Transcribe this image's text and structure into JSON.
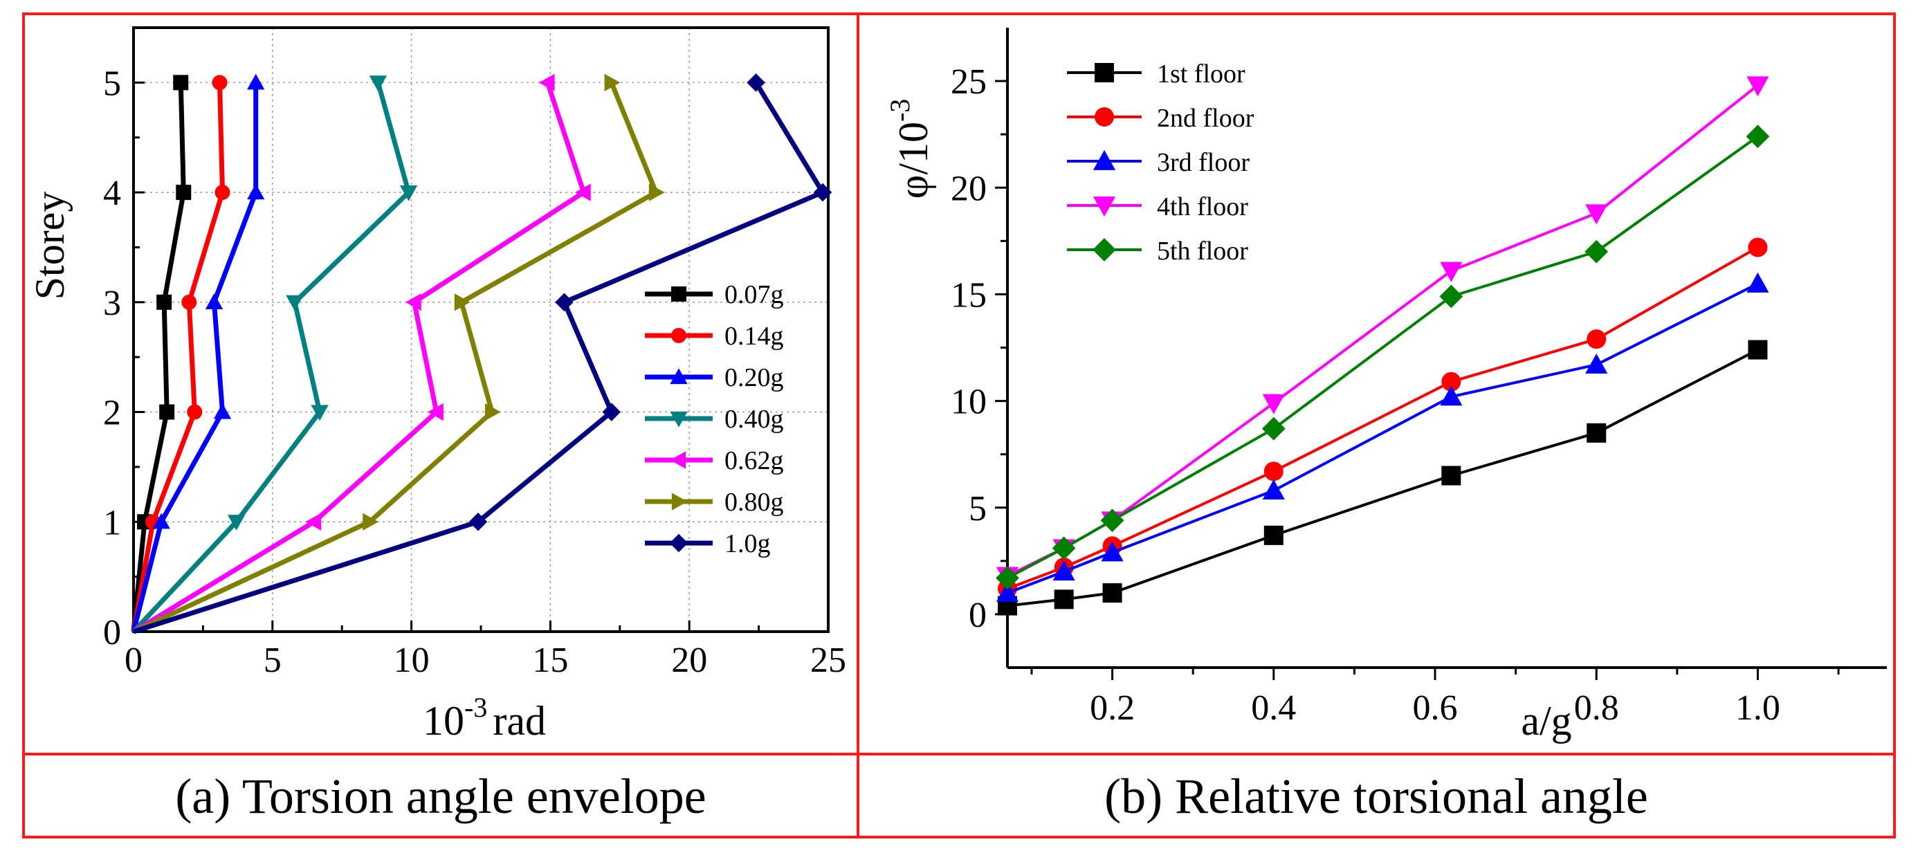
{
  "captions": {
    "a": "(a) Torsion angle envelope",
    "b": "(b) Relative torsional angle"
  },
  "chart_data": [
    {
      "type": "line",
      "orientation": "profile",
      "title": "",
      "xlabel": "10",
      "xlabel_sup": "-3",
      "xlabel_unit": "rad",
      "ylabel": "Storey",
      "xlim": [
        0,
        25
      ],
      "ylim": [
        0,
        5.5
      ],
      "xticks": [
        0,
        5,
        10,
        15,
        20,
        25
      ],
      "yticks": [
        0,
        1,
        2,
        3,
        4,
        5
      ],
      "grid": true,
      "legend_position": "right-middle",
      "y": [
        0,
        1,
        2,
        3,
        4,
        5
      ],
      "series": [
        {
          "name": "0.07g",
          "marker": "square",
          "color": "#000000",
          "x": [
            0,
            0.4,
            1.2,
            1.1,
            1.8,
            1.7
          ]
        },
        {
          "name": "0.14g",
          "marker": "circle",
          "color": "#ff0000",
          "x": [
            0,
            0.7,
            2.2,
            2.0,
            3.2,
            3.1
          ]
        },
        {
          "name": "0.20g",
          "marker": "triangle-up",
          "color": "#0000ff",
          "x": [
            0,
            1.0,
            3.2,
            2.9,
            4.4,
            4.4
          ]
        },
        {
          "name": "0.40g",
          "marker": "triangle-down",
          "color": "#008080",
          "x": [
            0,
            3.7,
            6.7,
            5.8,
            9.9,
            8.8
          ]
        },
        {
          "name": "0.62g",
          "marker": "triangle-left",
          "color": "#ff00ff",
          "x": [
            0,
            6.5,
            10.9,
            10.1,
            16.2,
            14.9
          ]
        },
        {
          "name": "0.80g",
          "marker": "triangle-right",
          "color": "#808000",
          "x": [
            0,
            8.5,
            12.9,
            11.8,
            18.8,
            17.2
          ]
        },
        {
          "name": "1.0g",
          "marker": "diamond",
          "color": "#000080",
          "x": [
            0,
            12.4,
            17.2,
            15.5,
            24.8,
            22.4
          ]
        }
      ]
    },
    {
      "type": "line",
      "title": "",
      "xlabel": "a/g",
      "ylabel": "φ/10",
      "ylabel_sup": "-3",
      "xlim": [
        0.07,
        1.16
      ],
      "ylim": [
        -2.5,
        27.5
      ],
      "xticks": [
        0.2,
        0.4,
        0.6,
        0.8,
        1.0
      ],
      "xtick_labels": [
        "0.2",
        "0.4",
        "0.6",
        "0.8",
        "1.0"
      ],
      "yticks": [
        0,
        5,
        10,
        15,
        20,
        25
      ],
      "grid": false,
      "legend_position": "top-left",
      "x": [
        0.07,
        0.14,
        0.2,
        0.4,
        0.62,
        0.8,
        1.0
      ],
      "series": [
        {
          "name": "1st floor",
          "marker": "square",
          "color": "#000000",
          "values": [
            0.4,
            0.7,
            1.0,
            3.7,
            6.5,
            8.5,
            12.4
          ]
        },
        {
          "name": "2nd floor",
          "marker": "circle",
          "color": "#ff0000",
          "values": [
            1.2,
            2.2,
            3.2,
            6.7,
            10.9,
            12.9,
            17.2
          ]
        },
        {
          "name": "3rd floor",
          "marker": "triangle-up",
          "color": "#0000ff",
          "values": [
            1.0,
            2.0,
            2.9,
            5.8,
            10.2,
            11.7,
            15.5
          ]
        },
        {
          "name": "4th floor",
          "marker": "triangle-down",
          "color": "#ff00ff",
          "values": [
            1.8,
            3.1,
            4.4,
            9.9,
            16.1,
            18.8,
            24.8
          ]
        },
        {
          "name": "5th floor",
          "marker": "diamond",
          "color": "#008000",
          "values": [
            1.7,
            3.1,
            4.4,
            8.7,
            14.9,
            17.0,
            22.4
          ]
        }
      ]
    }
  ]
}
